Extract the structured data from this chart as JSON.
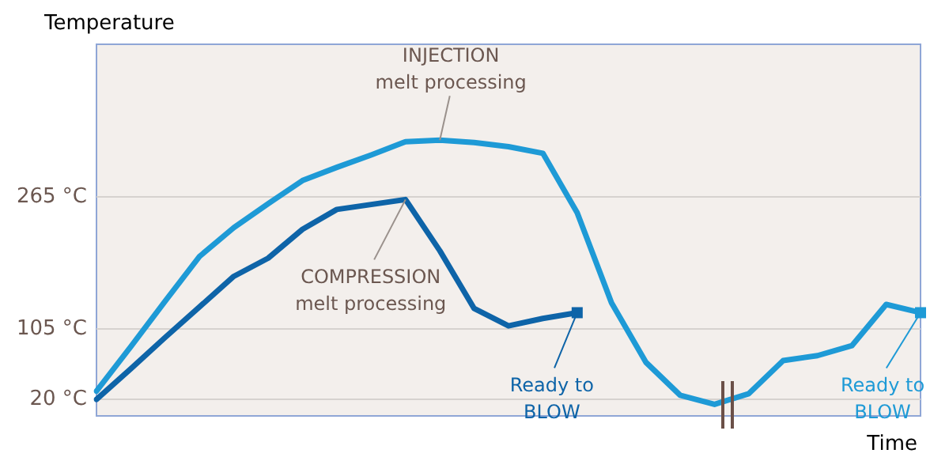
{
  "chart_data": {
    "type": "line",
    "ylabel": "Temperature",
    "xlabel": "Time",
    "categories": [
      null,
      null,
      null,
      null,
      null,
      null,
      null,
      null,
      null,
      null,
      null,
      null,
      null,
      null,
      null,
      null,
      null,
      null,
      null,
      null,
      null,
      null,
      null,
      null,
      null
    ],
    "ylim": [
      0,
      450
    ],
    "yticks": [
      {
        "value": 20,
        "label": "20 °C"
      },
      {
        "value": 105,
        "label": "105 °C"
      },
      {
        "value": 265,
        "label": "265 °C"
      }
    ],
    "tick_labels": "y",
    "grid": "y",
    "legend": false,
    "line_style": "solid",
    "series": [
      {
        "color": "#1e9ad6",
        "values": [
          30,
          84,
          139,
          193,
          228,
          257,
          285,
          301,
          316,
          332,
          334,
          331,
          326,
          318,
          246,
          137,
          65,
          25,
          14,
          27,
          67,
          73,
          85,
          135,
          125
        ]
      },
      {
        "color": "#0e64a8",
        "values": [
          20,
          57,
          95,
          132,
          169,
          191,
          226,
          250,
          256,
          262,
          200,
          130,
          109,
          118,
          125,
          null,
          null,
          null,
          null,
          null,
          null,
          null,
          null,
          null,
          null
        ]
      }
    ],
    "annotations": [
      "INJECTION\nmelt processing",
      "COMPRESSION\nmelt processing",
      "Ready to\nBLOW",
      "Ready to\nBLOW"
    ]
  }
}
